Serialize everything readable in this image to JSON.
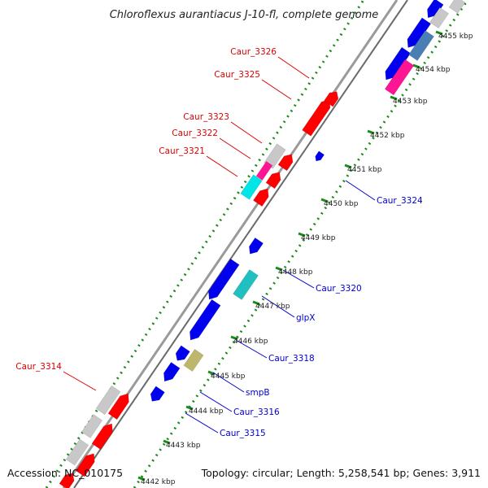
{
  "title": "Chloroflexus aurantiacus J-10-fl, complete genome",
  "footer": {
    "accession": "Accession: NC_010175",
    "topology": "Topology: circular; Length: 5,258,541 bp; Genes: 3,911"
  },
  "kbp_ticks": [
    "4442 kbp",
    "4443 kbp",
    "4444 kbp",
    "4445 kbp",
    "4446 kbp",
    "4447 kbp",
    "4448 kbp",
    "4449 kbp",
    "4450 kbp",
    "4451 kbp",
    "4452 kbp",
    "4453 kbp",
    "4454 kbp",
    "4455 kbp"
  ],
  "forward_labels": [
    "Caur_3326",
    "Caur_3325",
    "Caur_3323",
    "Caur_3322",
    "Caur_3321",
    "Caur_3314"
  ],
  "reverse_labels": [
    "Caur_3324",
    "Caur_3320",
    "glpX",
    "Caur_3318",
    "smpB",
    "Caur_3316",
    "Caur_3315"
  ],
  "colors": {
    "backbone": "#9a9a9a",
    "gc_skew_dots": "#1a8a1a",
    "forward_label": "#dd0000",
    "reverse_label": "#0000cc",
    "red_gene": "#ff0000",
    "blue_gene": "#0000ee",
    "grey_gene": "#c8c8c8",
    "cyan_gene": "#00e5e5",
    "teal_gene": "#20c0c0",
    "magenta_gene": "#ff1493",
    "steel_gene": "#4a7fb5",
    "olive_gene": "#bdb76b"
  }
}
